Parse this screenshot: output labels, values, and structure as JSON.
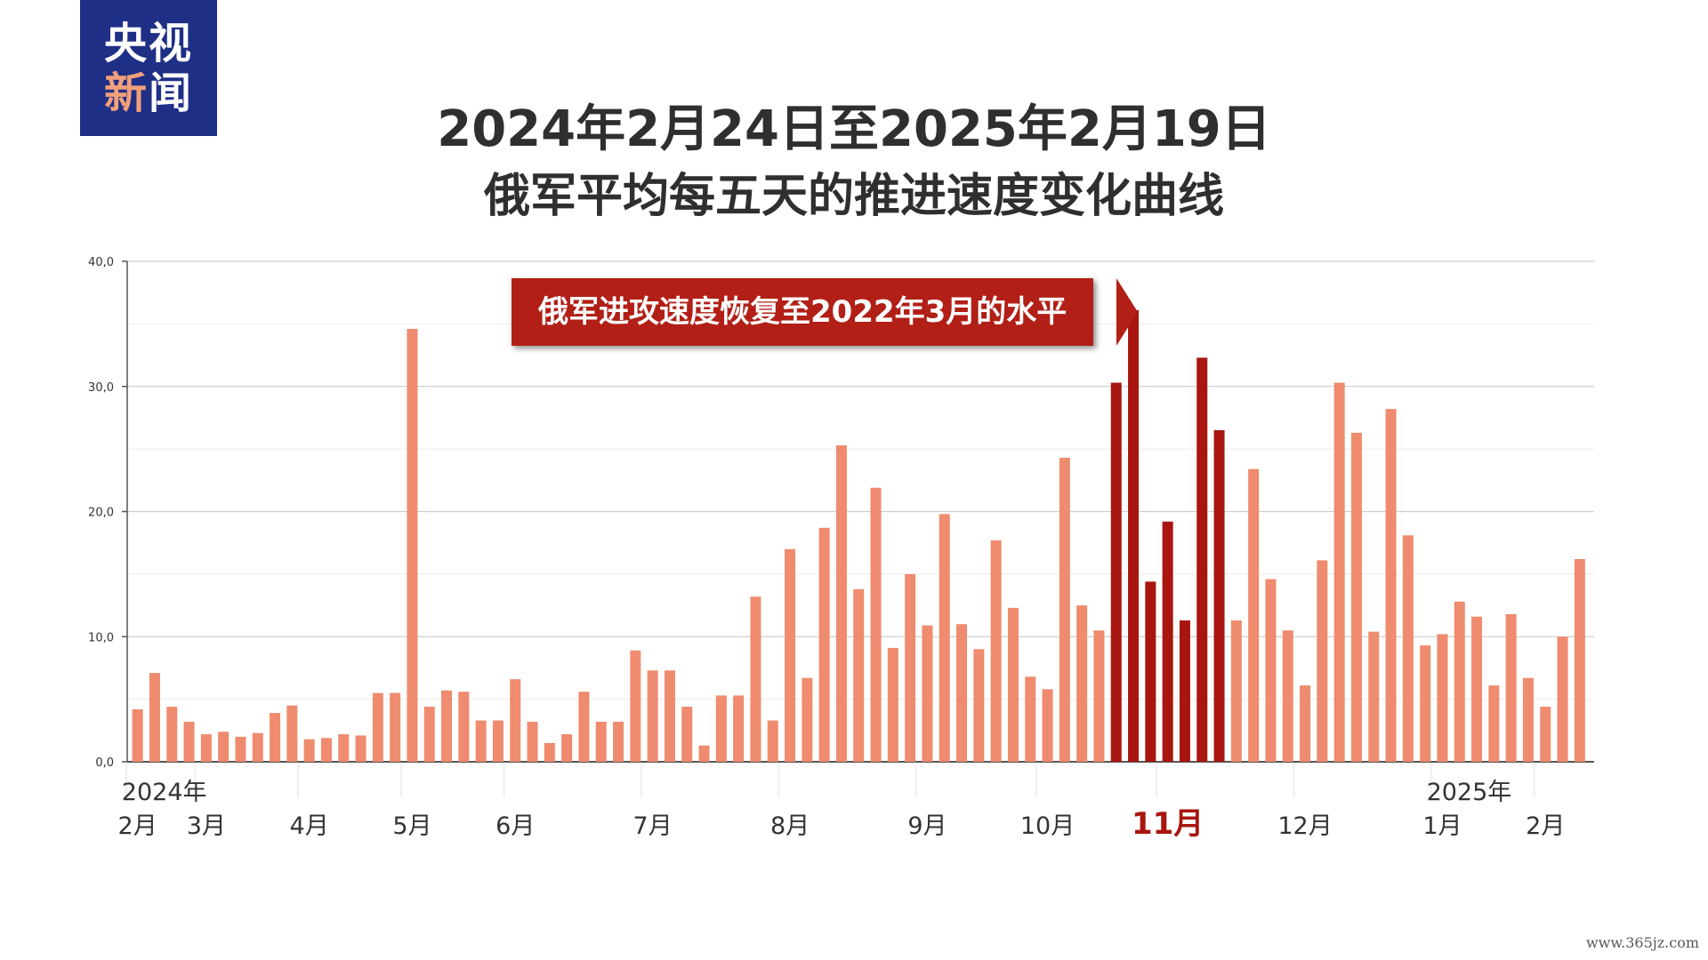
{
  "logo": {
    "line1": "央视",
    "line2_first": "新",
    "line2_second": "闻"
  },
  "title_line1": "2024年2月24日至2025年2月19日",
  "title_line2": "俄军平均每五天的推进速度变化曲线",
  "callout": "俄军进攻速度恢复至2022年3月的水平",
  "watermark": "www.365jz.com",
  "colors": {
    "bar": "#ef8b6e",
    "highlight_bar": "#a8160f",
    "callout": "#b11f16",
    "logo_bg": "#1f2f86",
    "grid": "#dedede",
    "axis": "#555555"
  },
  "chart_data": {
    "type": "bar",
    "title": "2024年2月24日至2025年2月19日",
    "subtitle": "俄军平均每五天的推进速度变化曲线",
    "ylim": [
      0,
      40
    ],
    "y_ticks": [
      "0,0",
      "10,0",
      "20,0",
      "30,0",
      "40,0"
    ],
    "grid": true,
    "x_labels": [
      {
        "text": "2024年",
        "bar_index": 0,
        "row": "upper"
      },
      {
        "text": "2月",
        "bar_index": 0,
        "row": "lower"
      },
      {
        "text": "3月",
        "bar_index": 4,
        "row": "lower"
      },
      {
        "text": "4月",
        "bar_index": 10,
        "row": "lower"
      },
      {
        "text": "5月",
        "bar_index": 16,
        "row": "lower"
      },
      {
        "text": "6月",
        "bar_index": 22,
        "row": "lower"
      },
      {
        "text": "7月",
        "bar_index": 30,
        "row": "lower"
      },
      {
        "text": "8月",
        "bar_index": 38,
        "row": "lower"
      },
      {
        "text": "9月",
        "bar_index": 46,
        "row": "lower"
      },
      {
        "text": "10月",
        "bar_index": 53,
        "row": "lower"
      },
      {
        "text": "11月",
        "bar_index": 60,
        "row": "lower",
        "highlight": true
      },
      {
        "text": "12月",
        "bar_index": 68,
        "row": "lower"
      },
      {
        "text": "2025年",
        "bar_index": 76,
        "row": "upper"
      },
      {
        "text": "1月",
        "bar_index": 76,
        "row": "lower"
      },
      {
        "text": "2月",
        "bar_index": 82,
        "row": "lower"
      }
    ],
    "values": [
      4.2,
      7.1,
      4.4,
      3.2,
      2.2,
      2.4,
      2.0,
      2.3,
      3.9,
      4.5,
      1.8,
      1.9,
      2.2,
      2.1,
      5.5,
      5.5,
      34.6,
      4.4,
      5.7,
      5.6,
      3.3,
      3.3,
      6.6,
      3.2,
      1.5,
      2.2,
      5.6,
      3.2,
      3.2,
      8.9,
      7.3,
      7.3,
      4.4,
      1.3,
      5.3,
      5.3,
      13.2,
      3.3,
      17.0,
      6.7,
      18.7,
      25.3,
      13.8,
      21.9,
      9.1,
      15.0,
      10.9,
      19.8,
      11.0,
      9.0,
      17.7,
      12.3,
      6.8,
      5.8,
      24.3,
      12.5,
      10.5,
      30.3,
      36.1,
      14.4,
      19.2,
      11.3,
      32.3,
      26.5,
      11.3,
      23.4,
      14.6,
      10.5,
      6.1,
      16.1,
      30.3,
      26.3,
      10.4,
      28.2,
      18.1,
      9.3,
      10.2,
      12.8,
      11.6,
      6.1,
      11.8,
      6.7,
      4.4,
      10.0,
      16.2
    ],
    "highlight_indices": [
      57,
      58,
      59,
      60,
      61,
      62,
      63
    ]
  }
}
